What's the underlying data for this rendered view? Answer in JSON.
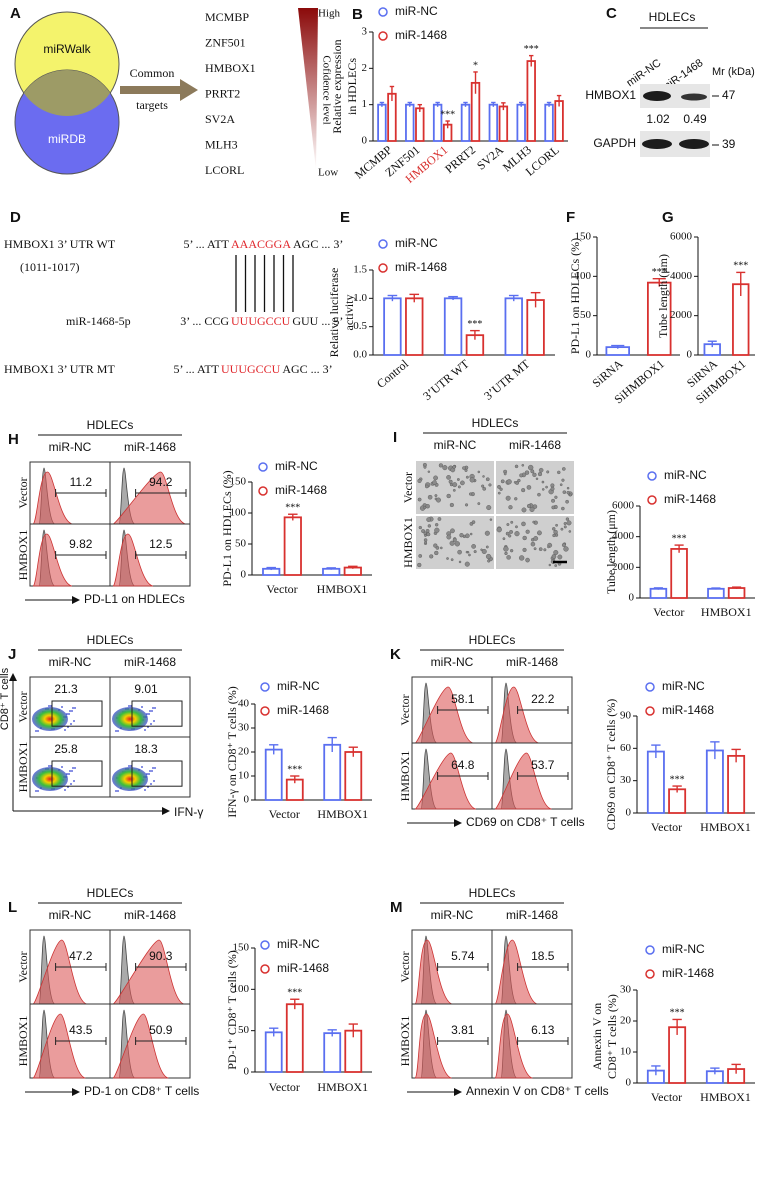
{
  "venn": {
    "label": "A",
    "sets": [
      "miRWalk",
      "miRDB"
    ],
    "arrow": [
      "Common",
      "targets"
    ],
    "genes": [
      "MCMBP",
      "ZNF501",
      "HMBOX1",
      "PRRT2",
      "SV2A",
      "MLH3",
      "LCORL"
    ],
    "scale": {
      "high": "High",
      "title": "Cofidence level",
      "low": "Low"
    }
  },
  "blot": {
    "label": "C",
    "header": "HDLECs",
    "lanes": [
      "miR-NC",
      "miR-1468"
    ],
    "mr": "Mr (kDa)",
    "rows": [
      {
        "name": "HMBOX1",
        "marker": 47,
        "quant": [
          1.02,
          0.49
        ]
      },
      {
        "name": "GAPDH",
        "marker": 39
      }
    ]
  },
  "sequence": {
    "label": "D",
    "position": "(1011-1017)",
    "rows": [
      {
        "name": "HMBOX1 3’ UTR WT",
        "parts": [
          "5’ ... ATT",
          "AAACGGA",
          "AGC ... 3’"
        ]
      },
      {
        "name": "miR-1468-5p",
        "parts": [
          "3’ ... CCG",
          "UUUGCCU",
          "GUU ... 5’"
        ]
      },
      {
        "name": "HMBOX1 3’ UTR MT",
        "parts": [
          "5’ ... ATT",
          "UUUGCCU",
          "AGC ... 3’"
        ]
      }
    ]
  },
  "flow": [
    {
      "label": "H",
      "kind": "histogram",
      "header": "HDLECs",
      "columns": [
        "miR-NC",
        "miR-1468"
      ],
      "rows": [
        "Vector",
        "HMBOX1"
      ],
      "gates": [
        [
          11.2,
          94.2
        ],
        [
          9.82,
          12.5
        ]
      ],
      "xlabel": "PD-L1 on HDLECs"
    },
    {
      "label": "J",
      "kind": "dot",
      "header": "HDLECs",
      "columns": [
        "miR-NC",
        "miR-1468"
      ],
      "rows": [
        "Vector",
        "HMBOX1"
      ],
      "gates": [
        [
          21.3,
          9.01
        ],
        [
          25.8,
          18.3
        ]
      ],
      "xlabel": "IFN-γ",
      "ylabel": "CD8⁺ T cells"
    },
    {
      "label": "K",
      "kind": "histogram",
      "header": "HDLECs",
      "columns": [
        "miR-NC",
        "miR-1468"
      ],
      "rows": [
        "Vector",
        "HMBOX1"
      ],
      "gates": [
        [
          58.1,
          22.2
        ],
        [
          64.8,
          53.7
        ]
      ],
      "xlabel": "CD69 on CD8⁺ T cells"
    },
    {
      "label": "L",
      "kind": "histogram",
      "header": "HDLECs",
      "columns": [
        "miR-NC",
        "miR-1468"
      ],
      "rows": [
        "Vector",
        "HMBOX1"
      ],
      "gates": [
        [
          47.2,
          90.3
        ],
        [
          43.5,
          50.9
        ]
      ],
      "xlabel": "PD-1 on CD8⁺ T cells"
    },
    {
      "label": "M",
      "kind": "histogram",
      "header": "HDLECs",
      "columns": [
        "miR-NC",
        "miR-1468"
      ],
      "rows": [
        "Vector",
        "HMBOX1"
      ],
      "gates": [
        [
          5.74,
          18.5
        ],
        [
          3.81,
          6.13
        ]
      ],
      "xlabel": "Annexin V on CD8⁺ T cells"
    }
  ],
  "micrograph": {
    "label": "I",
    "header": "HDLECs",
    "columns": [
      "miR-NC",
      "miR-1468"
    ],
    "rows": [
      "Vector",
      "HMBOX1"
    ]
  },
  "chart_data": [
    {
      "type": "bar",
      "label": "B",
      "ylabel": [
        "Relative expression",
        "in  HDLECs"
      ],
      "categories": [
        "MCMBP",
        "ZNF501",
        "HMBOX1",
        "PRRT2",
        "SV2A",
        "MLH3",
        "LCORL"
      ],
      "highlight_category": 2,
      "highlight_color": "#d8312f",
      "series": [
        {
          "name": "miR-NC",
          "color": "#5a6ff0",
          "values": [
            1,
            1,
            1,
            1,
            1,
            1,
            1
          ],
          "errors": [
            0.06,
            0.06,
            0.06,
            0.06,
            0.06,
            0.06,
            0.06
          ]
        },
        {
          "name": "miR-1468",
          "color": "#d8312f",
          "values": [
            1.3,
            0.9,
            0.45,
            1.6,
            0.95,
            2.2,
            1.1
          ],
          "errors": [
            0.2,
            0.1,
            0.1,
            0.3,
            0.1,
            0.15,
            0.15
          ],
          "stars": [
            null,
            null,
            "***",
            "*",
            null,
            "***",
            null
          ]
        }
      ],
      "ylim": [
        0,
        3
      ],
      "yticks": [
        0,
        1,
        2,
        3
      ]
    },
    {
      "type": "bar",
      "label": "E",
      "ylabel": [
        "Relative luciferase",
        "activity"
      ],
      "categories": [
        "Control",
        "3’UTR WT",
        "3’UTR MT"
      ],
      "series": [
        {
          "name": "miR-NC",
          "color": "#5a6ff0",
          "values": [
            1.0,
            1.0,
            1.0
          ],
          "errors": [
            0.05,
            0.03,
            0.05
          ]
        },
        {
          "name": "miR-1468",
          "color": "#d8312f",
          "values": [
            1.0,
            0.35,
            0.97
          ],
          "errors": [
            0.07,
            0.08,
            0.13
          ],
          "stars": [
            null,
            "***",
            null
          ]
        }
      ],
      "ylim": [
        0,
        1.5
      ],
      "yticks": [
        {
          "value": 0,
          "label": "0.0"
        },
        0.5,
        {
          "value": 1,
          "label": "1.0"
        },
        1.5
      ]
    },
    {
      "type": "bar",
      "label": "F",
      "ylabel": [
        "PD-L1 on HDLECs (%)"
      ],
      "categories": [
        "SiRNA",
        "SiHMBOX1"
      ],
      "values": [
        10,
        92
      ],
      "errors": [
        2,
        5
      ],
      "colors": [
        "#5a6ff0",
        "#d8312f"
      ],
      "stars": [
        null,
        "***"
      ],
      "ylim": [
        0,
        150
      ],
      "yticks": [
        0,
        50,
        100,
        150
      ]
    },
    {
      "type": "bar",
      "label": "G",
      "ylabel": [
        "Tube length (μm)"
      ],
      "categories": [
        "SiRNA",
        "SiHMBOX1"
      ],
      "values": [
        550,
        3600
      ],
      "errors": [
        150,
        600
      ],
      "colors": [
        "#5a6ff0",
        "#d8312f"
      ],
      "stars": [
        null,
        "***"
      ],
      "ylim": [
        0,
        6000
      ],
      "yticks": [
        0,
        2000,
        4000,
        6000
      ]
    },
    {
      "type": "bar",
      "ylabel": [
        "PD-L1 on HDLECs (%)"
      ],
      "categories": [
        "Vector",
        "HMBOX1"
      ],
      "series": [
        {
          "name": "miR-NC",
          "color": "#5a6ff0",
          "values": [
            10,
            10
          ],
          "errors": [
            2,
            1.5
          ]
        },
        {
          "name": "miR-1468",
          "color": "#d8312f",
          "values": [
            93,
            12
          ],
          "errors": [
            5,
            2
          ],
          "stars": [
            "***",
            null
          ]
        }
      ],
      "ylim": [
        0,
        150
      ],
      "yticks": [
        0,
        50,
        100,
        150
      ]
    },
    {
      "type": "bar",
      "ylabel": [
        "Tube length (μm)"
      ],
      "categories": [
        "Vector",
        "HMBOX1"
      ],
      "series": [
        {
          "name": "miR-NC",
          "color": "#5a6ff0",
          "values": [
            600,
            600
          ],
          "errors": [
            60,
            50
          ]
        },
        {
          "name": "miR-1468",
          "color": "#d8312f",
          "values": [
            3200,
            650
          ],
          "errors": [
            250,
            60
          ],
          "stars": [
            "***",
            null
          ]
        }
      ],
      "ylim": [
        0,
        6000
      ],
      "yticks": [
        0,
        2000,
        4000,
        6000
      ]
    },
    {
      "type": "bar",
      "ylabel": [
        "IFN-γ on CD8⁺ T cells (%)"
      ],
      "categories": [
        "Vector",
        "HMBOX1"
      ],
      "series": [
        {
          "name": "miR-NC",
          "color": "#5a6ff0",
          "values": [
            21,
            23
          ],
          "errors": [
            2,
            3
          ]
        },
        {
          "name": "miR-1468",
          "color": "#d8312f",
          "values": [
            8.5,
            20
          ],
          "errors": [
            1.5,
            2
          ],
          "stars": [
            "***",
            null
          ]
        }
      ],
      "ylim": [
        0,
        40
      ],
      "yticks": [
        0,
        10,
        20,
        30,
        40
      ]
    },
    {
      "type": "bar",
      "ylabel": [
        "CD69 on CD8⁺ T cells (%)"
      ],
      "categories": [
        "Vector",
        "HMBOX1"
      ],
      "series": [
        {
          "name": "miR-NC",
          "color": "#5a6ff0",
          "values": [
            57,
            58
          ],
          "errors": [
            6,
            8
          ]
        },
        {
          "name": "miR-1468",
          "color": "#d8312f",
          "values": [
            22,
            53
          ],
          "errors": [
            3,
            6
          ],
          "stars": [
            "***",
            null
          ]
        }
      ],
      "ylim": [
        0,
        90
      ],
      "yticks": [
        0,
        30,
        60,
        90
      ]
    },
    {
      "type": "bar",
      "ylabel": [
        "PD-1⁺ CD8⁺ T cells (%)"
      ],
      "categories": [
        "Vector",
        "HMBOX1"
      ],
      "series": [
        {
          "name": "miR-NC",
          "color": "#5a6ff0",
          "values": [
            48,
            47
          ],
          "errors": [
            5,
            4
          ]
        },
        {
          "name": "miR-1468",
          "color": "#d8312f",
          "values": [
            82,
            50
          ],
          "errors": [
            6,
            8
          ],
          "stars": [
            "***",
            null
          ]
        }
      ],
      "ylim": [
        0,
        150
      ],
      "yticks": [
        0,
        50,
        100,
        150
      ]
    },
    {
      "type": "bar",
      "ylabel": [
        "Annexin V on",
        "CD8⁺ T cells (%)"
      ],
      "categories": [
        "Vector",
        "HMBOX1"
      ],
      "series": [
        {
          "name": "miR-NC",
          "color": "#5a6ff0",
          "values": [
            4,
            3.8
          ],
          "errors": [
            1.5,
            1
          ]
        },
        {
          "name": "miR-1468",
          "color": "#d8312f",
          "values": [
            18,
            4.5
          ],
          "errors": [
            2.5,
            1.5
          ],
          "stars": [
            "***",
            null
          ]
        }
      ],
      "ylim": [
        0,
        30
      ],
      "yticks": [
        0,
        10,
        20,
        30
      ]
    }
  ]
}
